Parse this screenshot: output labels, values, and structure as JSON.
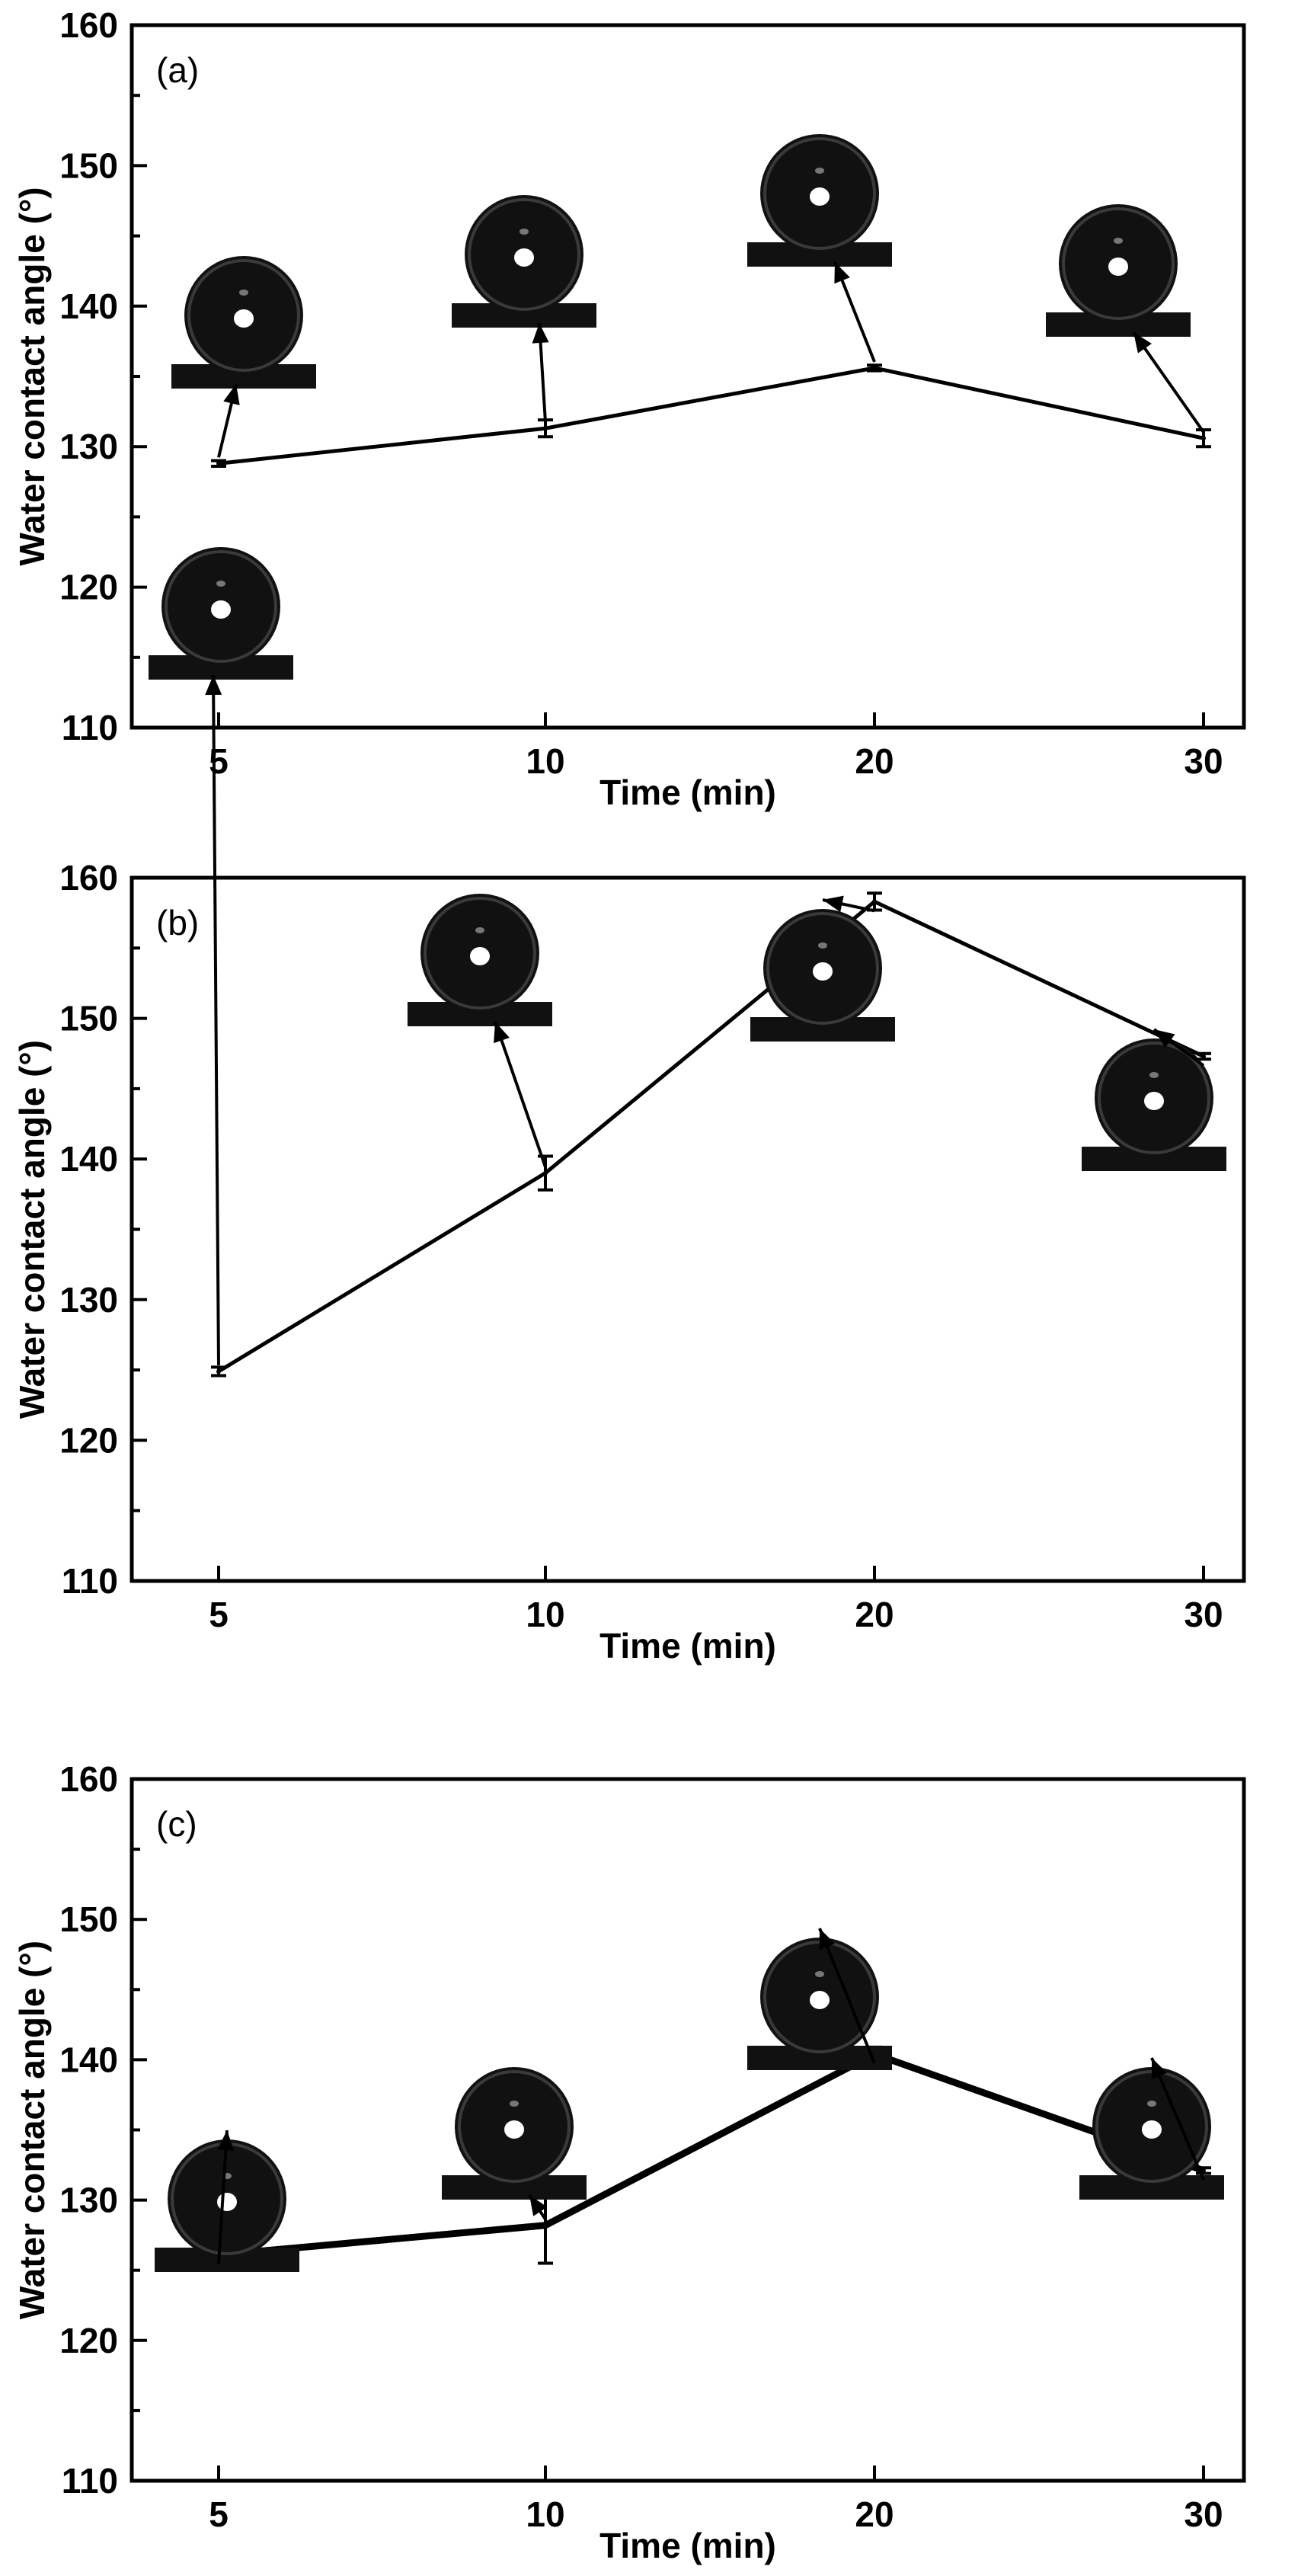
{
  "chart_data": [
    {
      "type": "line",
      "panel_label": "(a)",
      "xlabel": "Time (min)",
      "ylabel": "Water contact angle (°)",
      "categories": [
        "5",
        "10",
        "20",
        "30"
      ],
      "ylim": [
        110,
        160
      ],
      "yticks": [
        "110",
        "120",
        "130",
        "140",
        "150",
        "160"
      ],
      "series": [
        {
          "values": [
            128.8,
            131.3,
            135.6,
            130.6
          ],
          "errors": [
            0.2,
            0.6,
            0.2,
            0.6
          ]
        }
      ],
      "grid": false,
      "legend": "none",
      "insets": "water droplet images above each point"
    },
    {
      "type": "line",
      "panel_label": "(b)",
      "xlabel": "Time (min)",
      "ylabel": "Water contact angle (°)",
      "categories": [
        "5",
        "10",
        "20",
        "30"
      ],
      "ylim": [
        110,
        160
      ],
      "yticks": [
        "110",
        "120",
        "130",
        "140",
        "150",
        "160"
      ],
      "series": [
        {
          "values": [
            124.9,
            139.0,
            158.3,
            147.3
          ],
          "errors": [
            0.3,
            1.2,
            0.6,
            0.2
          ]
        }
      ],
      "grid": false,
      "legend": "none",
      "insets": "water droplet images near each point"
    },
    {
      "type": "line",
      "panel_label": "(c)",
      "xlabel": "Time (min)",
      "ylabel": "Water contact angle (°)",
      "categories": [
        "5",
        "10",
        "20",
        "30"
      ],
      "ylim": [
        110,
        160
      ],
      "yticks": [
        "110",
        "120",
        "130",
        "140",
        "150",
        "160"
      ],
      "series": [
        {
          "values": [
            126.1,
            128.2,
            140.4,
            132.1
          ],
          "errors": [
            0.6,
            2.7,
            0.5,
            0.2
          ]
        }
      ],
      "grid": false,
      "legend": "none",
      "insets": "water droplet images above each point"
    }
  ],
  "colors": {
    "line": "#000000",
    "droplet": "#111111",
    "background": "#ffffff"
  },
  "droplet_icon_name": "water-droplet-image"
}
